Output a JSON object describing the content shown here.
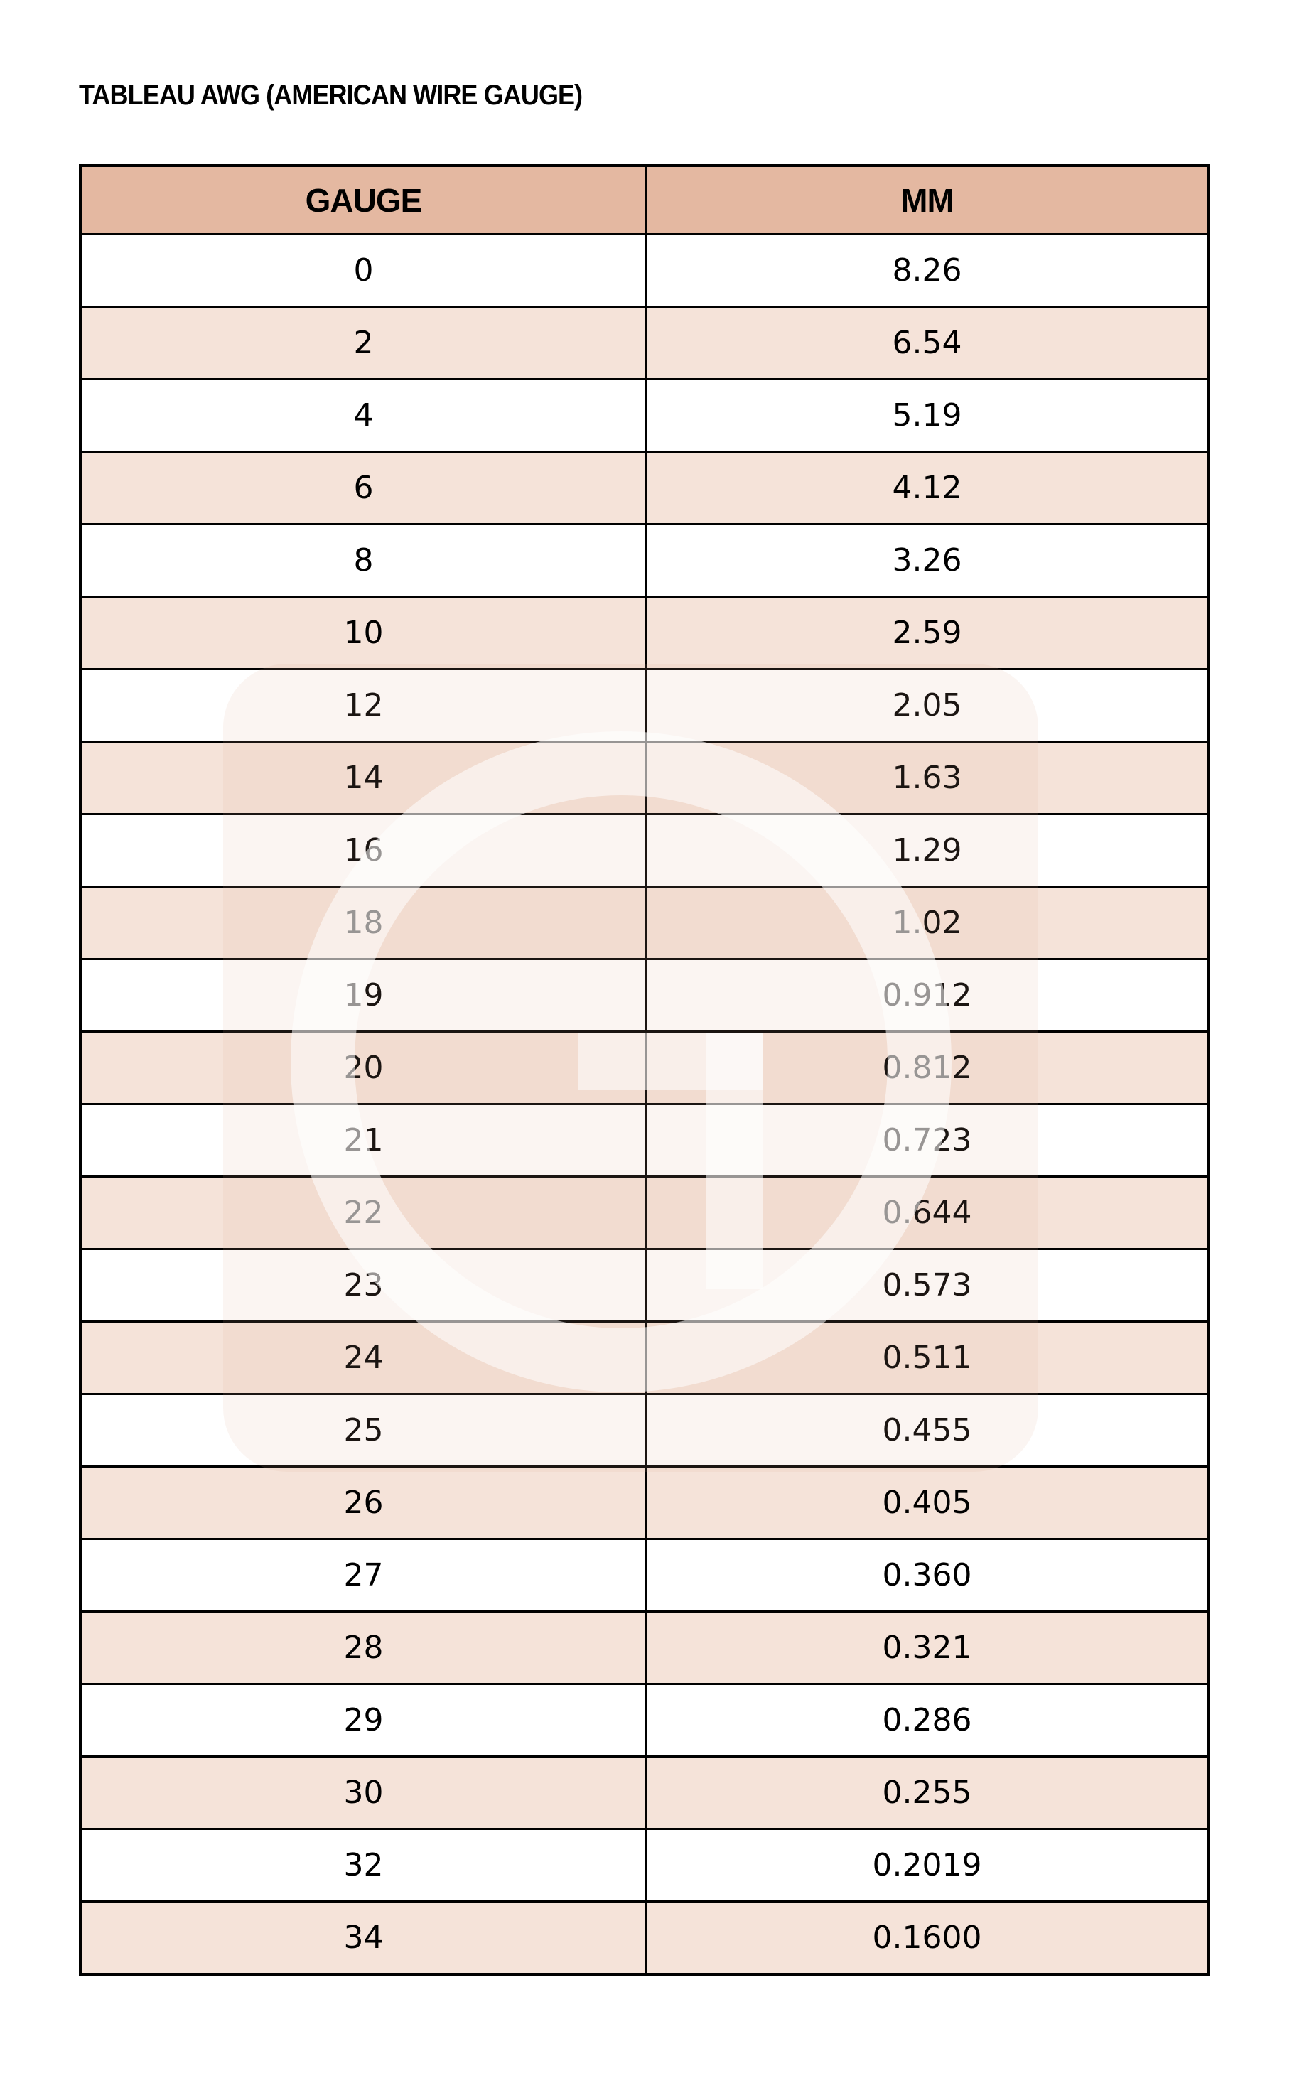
{
  "title": "TABLEAU AWG (AMERICAN WIRE GAUGE)",
  "colors": {
    "header": "#e4b8a1",
    "alt_row": "#f5e3d9",
    "border": "#000000",
    "watermark": "logo-g"
  },
  "table": {
    "headers": [
      "GAUGE",
      "MM"
    ],
    "rows": [
      [
        "0",
        "8.26"
      ],
      [
        "2",
        "6.54"
      ],
      [
        "4",
        "5.19"
      ],
      [
        "6",
        "4.12"
      ],
      [
        "8",
        "3.26"
      ],
      [
        "10",
        "2.59"
      ],
      [
        "12",
        "2.05"
      ],
      [
        "14",
        "1.63"
      ],
      [
        "16",
        "1.29"
      ],
      [
        "18",
        "1.02"
      ],
      [
        "19",
        "0.912"
      ],
      [
        "20",
        "0.812"
      ],
      [
        "21",
        "0.723"
      ],
      [
        "22",
        "0.644"
      ],
      [
        "23",
        "0.573"
      ],
      [
        "24",
        "0.511"
      ],
      [
        "25",
        "0.455"
      ],
      [
        "26",
        "0.405"
      ],
      [
        "27",
        "0.360"
      ],
      [
        "28",
        "0.321"
      ],
      [
        "29",
        "0.286"
      ],
      [
        "30",
        "0.255"
      ],
      [
        "32",
        "0.2019"
      ],
      [
        "34",
        "0.1600"
      ]
    ]
  }
}
